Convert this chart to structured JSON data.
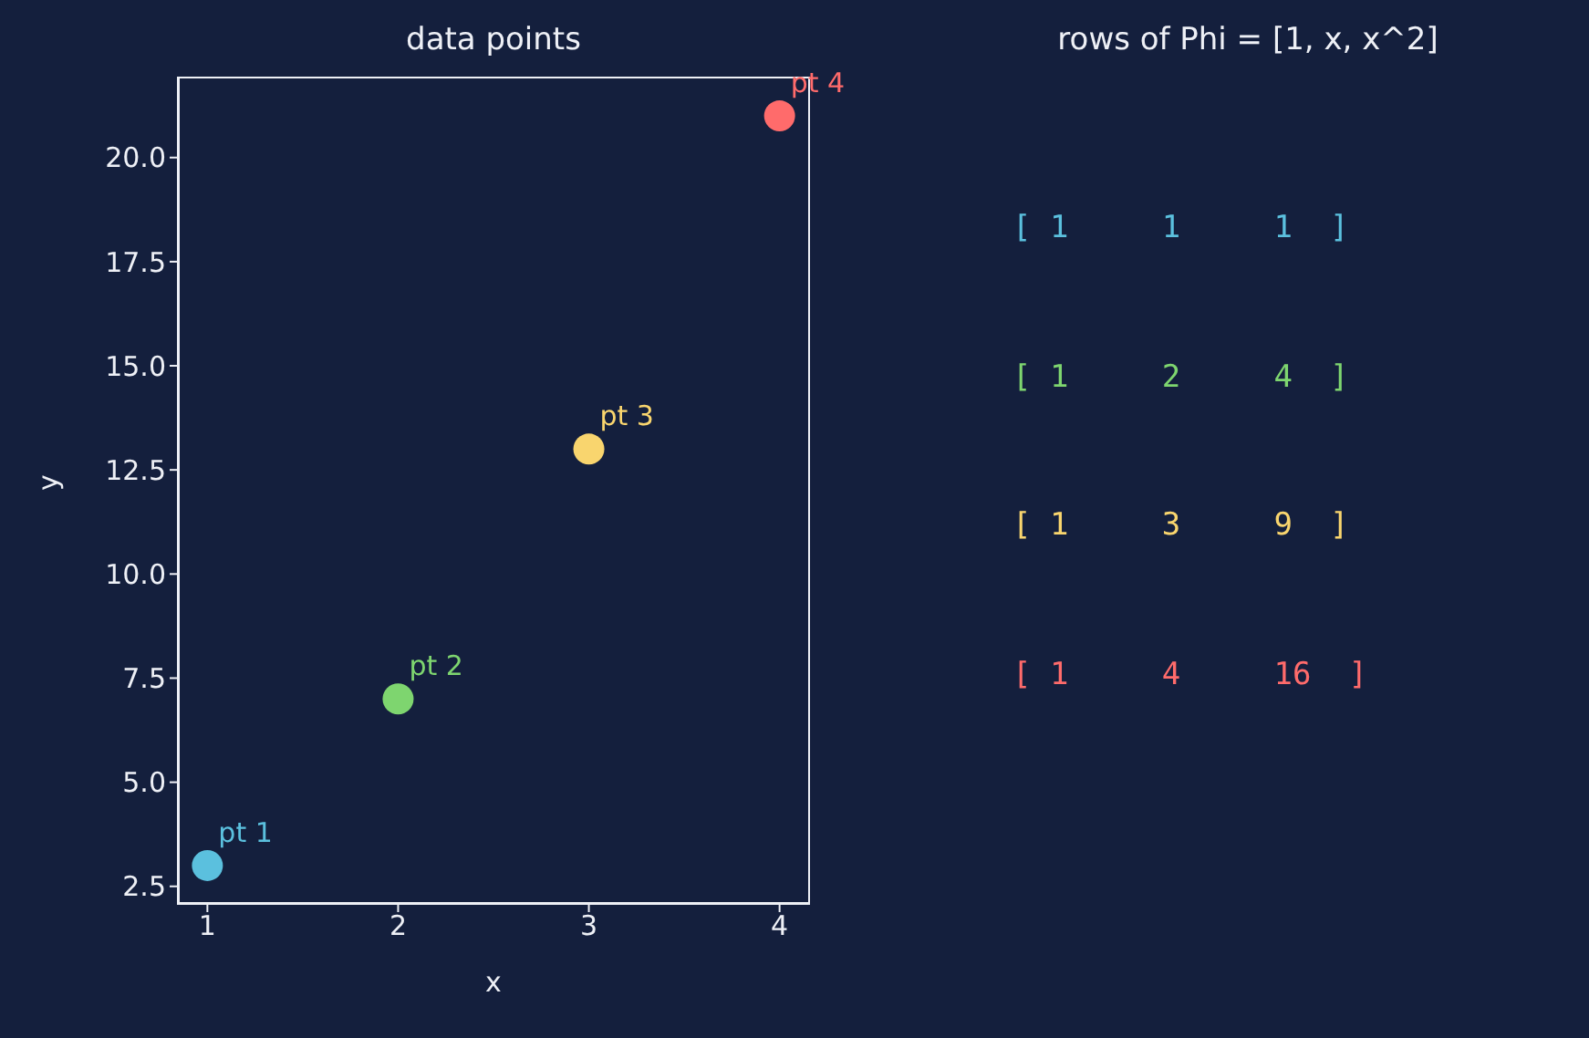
{
  "chart_data": [
    {
      "type": "scatter",
      "title": "data points",
      "xlabel": "x",
      "ylabel": "y",
      "x": [
        1,
        2,
        3,
        4
      ],
      "values": [
        3,
        7,
        13,
        21
      ],
      "colors": [
        "#5bc0de",
        "#7ed56f",
        "#f9d56e",
        "#ff6b6b"
      ],
      "marker": "circle",
      "xlim": [
        0.85,
        4.15
      ],
      "xticks": [
        1,
        2,
        3,
        4
      ],
      "ylim": [
        2.1,
        21.9
      ],
      "yticks": [
        {
          "value": 2.5,
          "label": "2.5"
        },
        {
          "value": 5,
          "label": "5.0"
        },
        {
          "value": 7.5,
          "label": "7.5"
        },
        {
          "value": 10,
          "label": "10.0"
        },
        {
          "value": 12.5,
          "label": "12.5"
        },
        {
          "value": 15,
          "label": "15.0"
        },
        {
          "value": 17.5,
          "label": "17.5"
        },
        {
          "value": 20,
          "label": "20.0"
        }
      ],
      "annotations": [
        {
          "text": "pt 1",
          "x": 1,
          "y": 3
        },
        {
          "text": "pt 2",
          "x": 2,
          "y": 7
        },
        {
          "text": "pt 3",
          "x": 3,
          "y": 13
        },
        {
          "text": "pt 4",
          "x": 4,
          "y": 21
        }
      ]
    },
    {
      "type": "other",
      "title": "rows of Phi = [1, x, x^2]",
      "annotations": [
        "[ 1 1 1 ]",
        "[ 1 2 4 ]",
        "[ 1 3 9 ]",
        "[ 1 4 16 ]"
      ],
      "colors": [
        "#5bc0de",
        "#7ed56f",
        "#f9d56e",
        "#ff6b6b"
      ]
    }
  ]
}
